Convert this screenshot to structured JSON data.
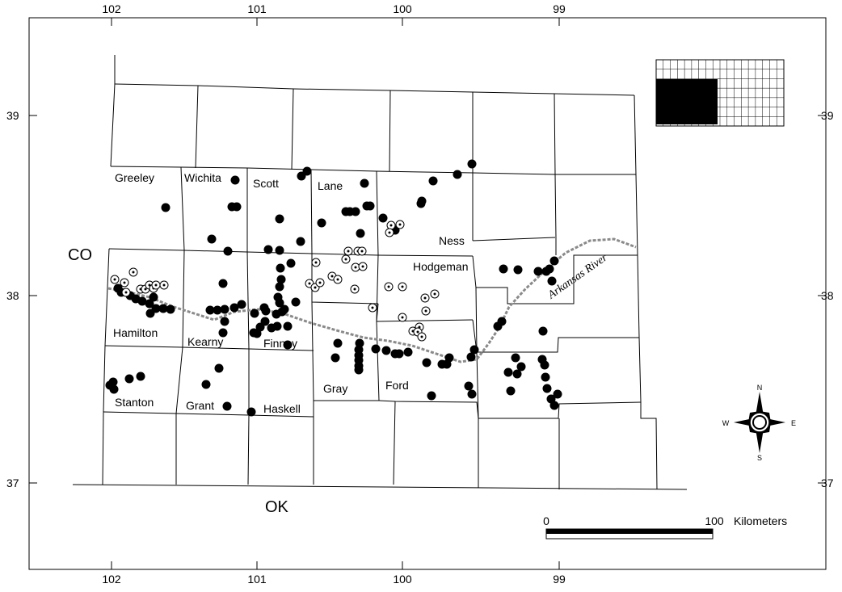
{
  "map": {
    "top_ticks": [
      "102",
      "101",
      "100",
      "99"
    ],
    "bottom_ticks": [
      "102",
      "101",
      "100",
      "99"
    ],
    "left_ticks": [
      "39",
      "38",
      "37"
    ],
    "right_ticks": [
      "39",
      "38",
      "37"
    ],
    "states": {
      "west": "CO",
      "south": "OK"
    },
    "counties": [
      "Greeley",
      "Wichita",
      "Scott",
      "Lane",
      "Ness",
      "Hodgeman",
      "Hamilton",
      "Kearny",
      "Finney",
      "Gray",
      "Ford",
      "Stanton",
      "Grant",
      "Haskell"
    ],
    "river_label": "Arkansas River",
    "scale_bar": {
      "start": "0",
      "end": "100",
      "unit": "Kilometers"
    },
    "compass": {
      "n": "N",
      "s": "S",
      "e": "E",
      "w": "W"
    },
    "colors": {
      "site_solid": "#000000",
      "river": "#8a8a8a",
      "inset_highlight": "#000000"
    },
    "symbols": {
      "solid_site": "filled-circle",
      "open_site": "circle-with-center-dot"
    }
  }
}
